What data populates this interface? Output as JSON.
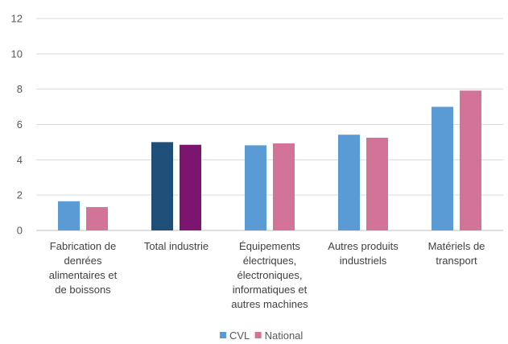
{
  "chart_data": {
    "type": "bar",
    "categories": [
      [
        "Fabrication de",
        "denrées",
        "alimentaires et",
        "de boissons"
      ],
      [
        "Total industrie"
      ],
      [
        "Équipements",
        "électriques,",
        "électroniques,",
        "informatiques et",
        "autres machines"
      ],
      [
        "Autres produits",
        "industriels"
      ],
      [
        "Matériels de",
        "transport"
      ]
    ],
    "series": [
      {
        "name": "CVL",
        "values": [
          1.65,
          5.0,
          4.82,
          5.42,
          7.0
        ],
        "color": "#5B9BD5",
        "highlight_color": "#1F4E79"
      },
      {
        "name": "National",
        "values": [
          1.32,
          4.85,
          4.93,
          5.25,
          7.92
        ],
        "color": "#D27397",
        "highlight_color": "#7B1570"
      }
    ],
    "highlight_category_index": 1,
    "yticks": [
      "0",
      "2",
      "4",
      "6",
      "8",
      "10",
      "12"
    ],
    "ylim": [
      0,
      12
    ],
    "grid": true,
    "legend_position": "bottom",
    "title": "",
    "xlabel": "",
    "ylabel": ""
  }
}
